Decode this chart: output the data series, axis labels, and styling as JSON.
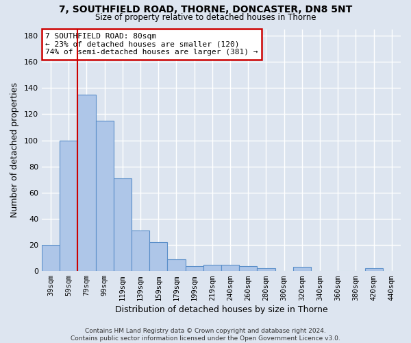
{
  "title1": "7, SOUTHFIELD ROAD, THORNE, DONCASTER, DN8 5NT",
  "title2": "Size of property relative to detached houses in Thorne",
  "xlabel": "Distribution of detached houses by size in Thorne",
  "ylabel": "Number of detached properties",
  "bar_values": [
    20,
    100,
    135,
    115,
    71,
    31,
    22,
    9,
    4,
    5,
    5,
    4,
    2,
    0,
    3,
    0,
    0,
    0,
    2,
    0
  ],
  "bar_labels": [
    "39sqm",
    "59sqm",
    "79sqm",
    "99sqm",
    "119sqm",
    "139sqm",
    "159sqm",
    "179sqm",
    "199sqm",
    "219sqm",
    "240sqm",
    "260sqm",
    "280sqm",
    "300sqm",
    "320sqm",
    "340sqm",
    "360sqm",
    "380sqm",
    "420sqm",
    "440sqm"
  ],
  "bar_color": "#aec6e8",
  "bar_edge_color": "#5b8fc9",
  "background_color": "#dde5f0",
  "grid_color": "#ffffff",
  "red_line_x": 1.5,
  "annotation_text": "7 SOUTHFIELD ROAD: 80sqm\n← 23% of detached houses are smaller (120)\n74% of semi-detached houses are larger (381) →",
  "annotation_box_color": "#ffffff",
  "annotation_box_edge": "#cc0000",
  "vline_color": "#cc0000",
  "ylim": [
    0,
    185
  ],
  "yticks": [
    0,
    20,
    40,
    60,
    80,
    100,
    120,
    140,
    160,
    180
  ],
  "footer": "Contains HM Land Registry data © Crown copyright and database right 2024.\nContains public sector information licensed under the Open Government Licence v3.0."
}
